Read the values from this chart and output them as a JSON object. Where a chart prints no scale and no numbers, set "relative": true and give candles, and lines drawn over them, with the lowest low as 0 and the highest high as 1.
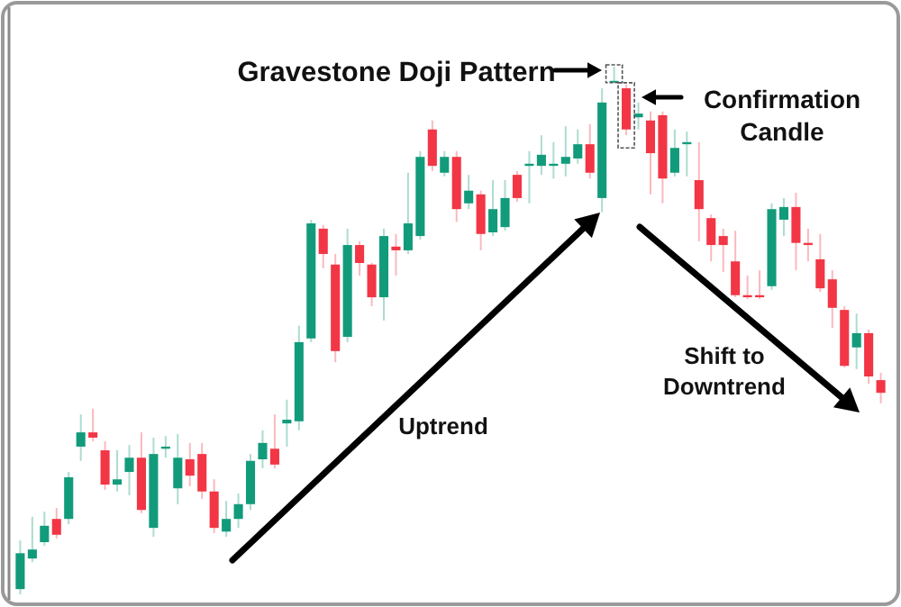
{
  "chart_data": {
    "type": "candlestick",
    "relative": true,
    "categories": [
      null,
      null,
      null,
      null,
      null,
      null,
      null,
      null,
      null,
      null,
      null,
      null,
      null,
      null,
      null,
      null,
      null,
      null,
      null,
      null,
      null,
      null,
      null,
      null,
      null,
      null,
      null,
      null,
      null,
      null,
      null,
      null,
      null,
      null,
      null,
      null,
      null,
      null,
      null,
      null,
      null,
      null,
      null,
      null,
      null,
      null,
      null,
      null,
      null,
      null,
      null,
      null,
      null,
      null,
      null,
      null,
      null,
      null,
      null,
      null,
      null,
      null,
      null,
      null,
      null,
      null,
      null,
      null,
      null,
      null,
      null,
      null
    ],
    "ohlc": [
      [
        0.01,
        0.102,
        0,
        0.078
      ],
      [
        0.068,
        0.147,
        0.061,
        0.085
      ],
      [
        0.099,
        0.157,
        0.092,
        0.13
      ],
      [
        0.143,
        0.164,
        0.106,
        0.113
      ],
      [
        0.143,
        0.232,
        0.133,
        0.222
      ],
      [
        0.28,
        0.341,
        0.253,
        0.307
      ],
      [
        0.307,
        0.352,
        0.29,
        0.297
      ],
      [
        0.273,
        0.29,
        0.198,
        0.208
      ],
      [
        0.208,
        0.273,
        0.195,
        0.218
      ],
      [
        0.232,
        0.283,
        0.188,
        0.259
      ],
      [
        0.259,
        0.307,
        0.154,
        0.16
      ],
      [
        0.126,
        0.297,
        0.109,
        0.266
      ],
      [
        0.276,
        0.3,
        0.259,
        0.28
      ],
      [
        0.201,
        0.304,
        0.171,
        0.259
      ],
      [
        0.256,
        0.287,
        0.205,
        0.225
      ],
      [
        0.266,
        0.287,
        0.181,
        0.195
      ],
      [
        0.195,
        0.218,
        0.116,
        0.126
      ],
      [
        0.119,
        0.177,
        0.109,
        0.143
      ],
      [
        0.143,
        0.191,
        0.126,
        0.171
      ],
      [
        0.171,
        0.266,
        0.16,
        0.253
      ],
      [
        0.256,
        0.311,
        0.239,
        0.287
      ],
      [
        0.276,
        0.341,
        0.239,
        0.246
      ],
      [
        0.324,
        0.369,
        0.28,
        0.331
      ],
      [
        0.328,
        0.509,
        0.311,
        0.478
      ],
      [
        0.485,
        0.71,
        0.478,
        0.703
      ],
      [
        0.693,
        0.7,
        0.618,
        0.645
      ],
      [
        0.625,
        0.645,
        0.44,
        0.461
      ],
      [
        0.488,
        0.693,
        0.478,
        0.662
      ],
      [
        0.662,
        0.669,
        0.604,
        0.628
      ],
      [
        0.625,
        0.628,
        0.546,
        0.563
      ],
      [
        0.563,
        0.693,
        0.519,
        0.679
      ],
      [
        0.659,
        0.683,
        0.604,
        0.652
      ],
      [
        0.652,
        0.799,
        0.645,
        0.703
      ],
      [
        0.679,
        0.84,
        0.672,
        0.829
      ],
      [
        0.881,
        0.898,
        0.802,
        0.812
      ],
      [
        0.799,
        0.84,
        0.792,
        0.829
      ],
      [
        0.829,
        0.84,
        0.706,
        0.73
      ],
      [
        0.741,
        0.795,
        0.73,
        0.765
      ],
      [
        0.758,
        0.765,
        0.652,
        0.683
      ],
      [
        0.686,
        0.785,
        0.679,
        0.73
      ],
      [
        0.696,
        0.785,
        0.689,
        0.751
      ],
      [
        0.795,
        0.802,
        0.744,
        0.751
      ],
      [
        0.812,
        0.84,
        0.741,
        0.816
      ],
      [
        0.812,
        0.87,
        0.795,
        0.833
      ],
      [
        0.812,
        0.857,
        0.788,
        0.816
      ],
      [
        0.816,
        0.887,
        0.792,
        0.829
      ],
      [
        0.826,
        0.881,
        0.816,
        0.853
      ],
      [
        0.853,
        0.891,
        0.788,
        0.799
      ],
      [
        0.751,
        0.959,
        0.724,
        0.932
      ],
      [
        0.973,
        1,
        0.973,
        0.973
      ],
      [
        0.959,
        0.966,
        0.87,
        0.881
      ],
      [
        0.904,
        0.932,
        0.881,
        0.911
      ],
      [
        0.898,
        0.915,
        0.758,
        0.836
      ],
      [
        0.908,
        0.915,
        0.741,
        0.788
      ],
      [
        0.799,
        0.881,
        0.792,
        0.846
      ],
      [
        0.853,
        0.877,
        0.792,
        0.857
      ],
      [
        0.785,
        0.857,
        0.669,
        0.73
      ],
      [
        0.713,
        0.72,
        0.631,
        0.662
      ],
      [
        0.679,
        0.693,
        0.611,
        0.662
      ],
      [
        0.631,
        0.689,
        0.563,
        0.567
      ],
      [
        0.567,
        0.604,
        0.56,
        0.563
      ],
      [
        0.567,
        0.614,
        0.56,
        0.563
      ],
      [
        0.584,
        0.741,
        0.577,
        0.73
      ],
      [
        0.71,
        0.751,
        0.679,
        0.734
      ],
      [
        0.734,
        0.761,
        0.614,
        0.666
      ],
      [
        0.666,
        0.693,
        0.631,
        0.662
      ],
      [
        0.635,
        0.683,
        0.573,
        0.58
      ],
      [
        0.597,
        0.614,
        0.505,
        0.543
      ],
      [
        0.539,
        0.546,
        0.43,
        0.433
      ],
      [
        0.468,
        0.532,
        0.427,
        0.495
      ],
      [
        0.495,
        0.502,
        0.399,
        0.413
      ],
      [
        0.406,
        0.42,
        0.362,
        0.382
      ]
    ],
    "colors": [
      "#129b7b",
      "#129b7b",
      "#129b7b",
      "#f23645",
      "#129b7b",
      "#129b7b",
      "#f23645",
      "#f23645",
      "#129b7b",
      "#129b7b",
      "#f23645",
      "#129b7b",
      "#129b7b",
      "#129b7b",
      "#f23645",
      "#f23645",
      "#f23645",
      "#129b7b",
      "#129b7b",
      "#129b7b",
      "#129b7b",
      "#f23645",
      "#129b7b",
      "#129b7b",
      "#129b7b",
      "#f23645",
      "#f23645",
      "#129b7b",
      "#f23645",
      "#f23645",
      "#129b7b",
      "#f23645",
      "#129b7b",
      "#129b7b",
      "#f23645",
      "#129b7b",
      "#f23645",
      "#129b7b",
      "#f23645",
      "#129b7b",
      "#129b7b",
      "#f23645",
      "#129b7b",
      "#129b7b",
      "#129b7b",
      "#129b7b",
      "#129b7b",
      "#f23645",
      "#129b7b",
      "#129b7b",
      "#f23645",
      "#129b7b",
      "#f23645",
      "#f23645",
      "#129b7b",
      "#129b7b",
      "#f23645",
      "#f23645",
      "#f23645",
      "#f23645",
      "#f23645",
      "#f23645",
      "#129b7b",
      "#129b7b",
      "#f23645",
      "#f23645",
      "#f23645",
      "#f23645",
      "#f23645",
      "#129b7b",
      "#f23645",
      "#f23645"
    ],
    "annotations": [
      "Gravestone Doji Pattern",
      "Confirmation\nCandle",
      "Uptrend",
      "Shift to\nDowntrend"
    ]
  }
}
